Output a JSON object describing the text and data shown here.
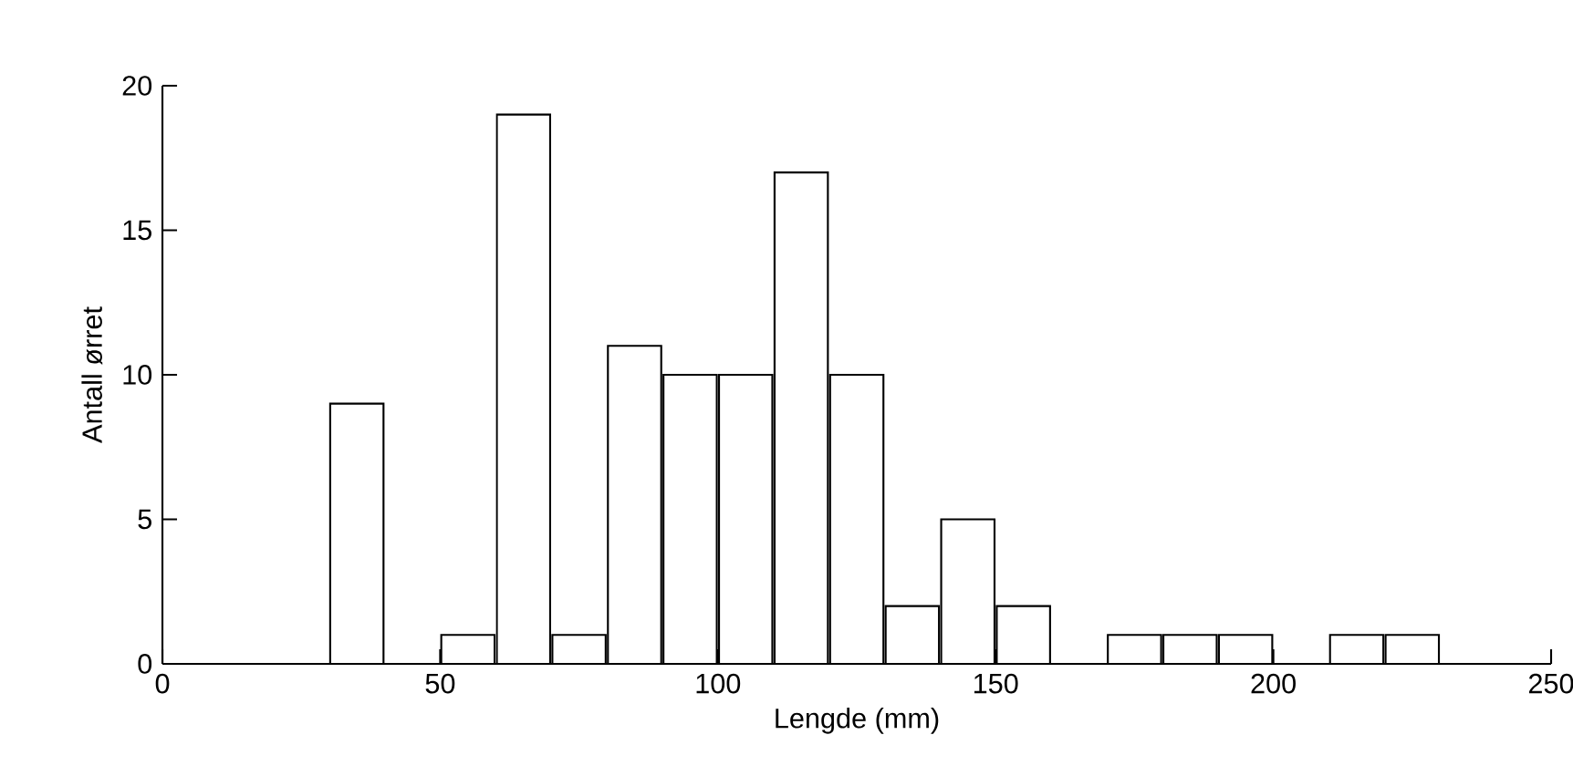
{
  "chart_data": {
    "type": "histogram",
    "xlabel": "Lengde (mm)",
    "ylabel": "Antall ørret",
    "bins": [
      30,
      40,
      50,
      60,
      70,
      80,
      90,
      100,
      110,
      120,
      130,
      140,
      150,
      160,
      170,
      180,
      190,
      200,
      210,
      220,
      230
    ],
    "values": [
      9,
      0,
      1,
      19,
      1,
      11,
      10,
      10,
      17,
      10,
      2,
      5,
      2,
      0,
      1,
      1,
      1,
      0,
      1,
      1
    ],
    "color": "#ffffff",
    "xlim": [
      0,
      250
    ],
    "xticks": [
      0,
      50,
      100,
      150,
      200,
      250
    ],
    "ylim": [
      0,
      20
    ],
    "yticks": [
      0,
      5,
      10,
      15,
      20
    ],
    "grid": false
  }
}
